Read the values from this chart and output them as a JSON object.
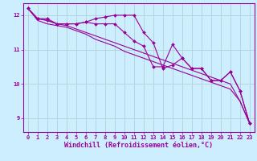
{
  "xlabel": "Windchill (Refroidissement éolien,°C)",
  "background_color": "#cceeff",
  "line_color": "#990099",
  "grid_color": "#aacccc",
  "ylim": [
    8.6,
    12.35
  ],
  "xlim": [
    -0.5,
    23.5
  ],
  "yticks": [
    9,
    10,
    11,
    12
  ],
  "xticks": [
    0,
    1,
    2,
    3,
    4,
    5,
    6,
    7,
    8,
    9,
    10,
    11,
    12,
    13,
    14,
    15,
    16,
    17,
    18,
    19,
    20,
    21,
    22,
    23
  ],
  "series": [
    {
      "y": [
        12.2,
        11.9,
        11.9,
        11.75,
        11.75,
        11.75,
        11.8,
        11.9,
        11.95,
        12.0,
        12.0,
        12.0,
        11.5,
        11.2,
        10.45,
        10.55,
        10.75,
        10.45,
        10.45,
        10.1,
        10.1,
        10.35,
        9.8,
        8.85
      ],
      "marker": true
    },
    {
      "y": [
        12.2,
        11.9,
        11.85,
        11.75,
        11.75,
        11.75,
        11.8,
        11.75,
        11.75,
        11.75,
        11.5,
        11.25,
        11.1,
        10.5,
        10.5,
        11.15,
        10.75,
        10.45,
        10.45,
        10.1,
        10.1,
        10.35,
        9.8,
        8.85
      ],
      "marker": true
    },
    {
      "y": [
        12.2,
        11.9,
        11.85,
        11.75,
        11.7,
        11.6,
        11.5,
        11.4,
        11.3,
        11.2,
        11.1,
        11.0,
        10.9,
        10.8,
        10.7,
        10.6,
        10.5,
        10.4,
        10.3,
        10.2,
        10.1,
        10.0,
        9.5,
        8.85
      ],
      "marker": false
    },
    {
      "y": [
        12.2,
        11.85,
        11.75,
        11.7,
        11.65,
        11.55,
        11.45,
        11.3,
        11.2,
        11.1,
        10.95,
        10.85,
        10.75,
        10.65,
        10.55,
        10.45,
        10.35,
        10.25,
        10.15,
        10.05,
        9.95,
        9.85,
        9.5,
        8.85
      ],
      "marker": false
    }
  ],
  "markersize": 2.0,
  "linewidth": 0.8,
  "tick_fontsize": 5.0,
  "xlabel_fontsize": 6.0
}
